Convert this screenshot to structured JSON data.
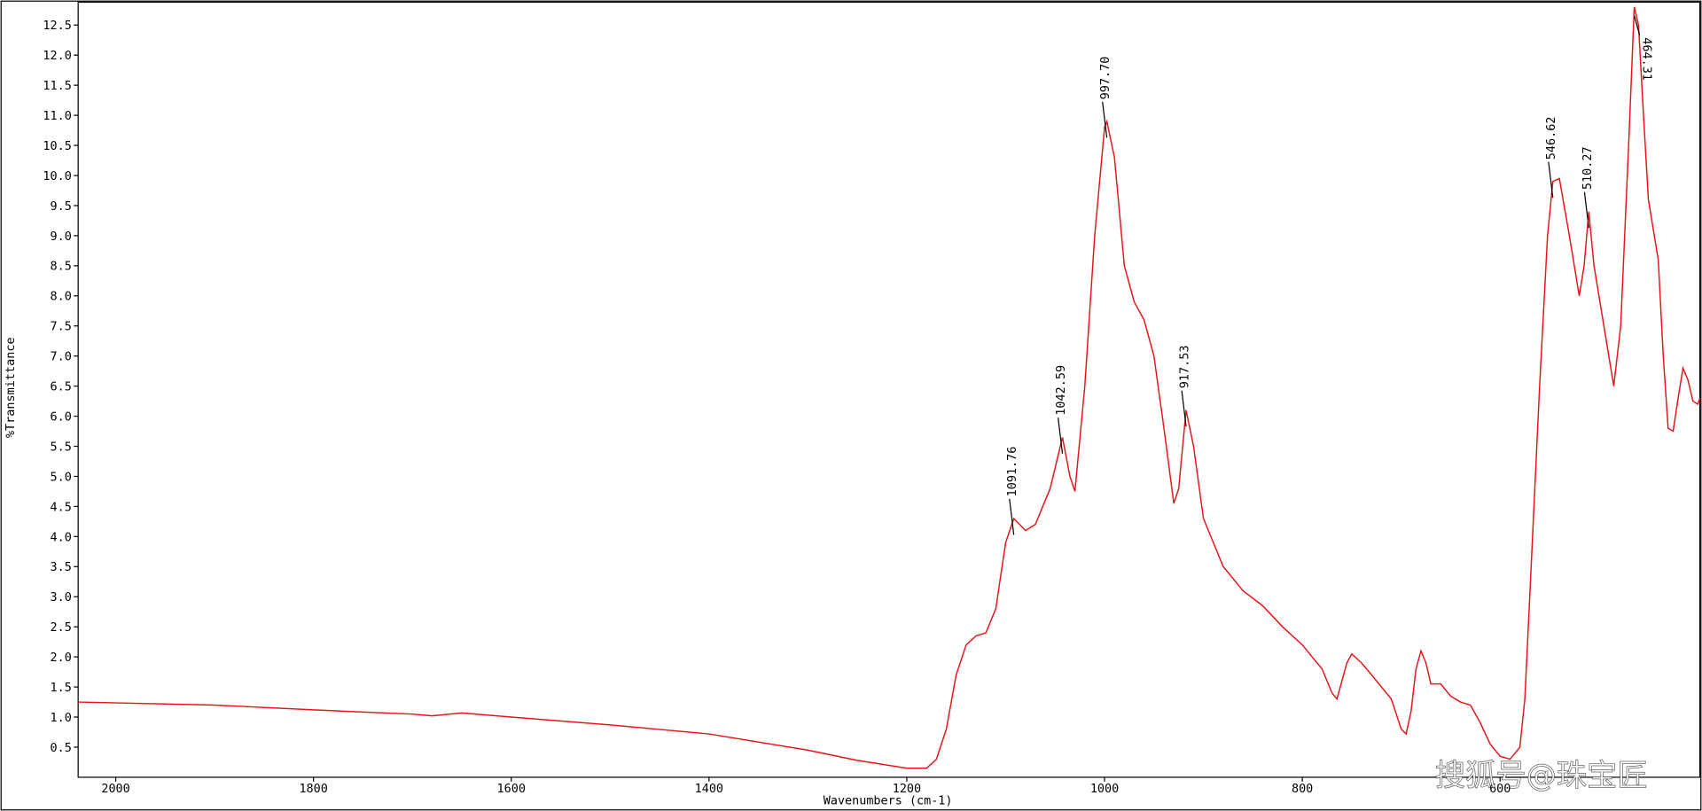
{
  "chart_data": {
    "type": "line",
    "xlabel": "Wavenumbers (cm-1)",
    "ylabel": "%Transmittance",
    "watermark": "搜狐号@珠宝匠",
    "color": "#e8141a",
    "xlim": [
      2038,
      398
    ],
    "ylim": [
      0.0,
      12.88
    ],
    "xticks": [
      2000,
      1800,
      1600,
      1400,
      1200,
      1000,
      800,
      600
    ],
    "yticks": [
      0.5,
      {
        "value": 1,
        "label": "1.0"
      },
      1.5,
      {
        "value": 2,
        "label": "2.0"
      },
      2.5,
      {
        "value": 3,
        "label": "3.0"
      },
      3.5,
      {
        "value": 4,
        "label": "4.0"
      },
      4.5,
      {
        "value": 5,
        "label": "5.0"
      },
      5.5,
      {
        "value": 6,
        "label": "6.0"
      },
      6.5,
      {
        "value": 7,
        "label": "7.0"
      },
      7.5,
      {
        "value": 8,
        "label": "8.0"
      },
      8.5,
      {
        "value": 9,
        "label": "9.0"
      },
      9.5,
      {
        "value": 10,
        "label": "10.0"
      },
      10.5,
      {
        "value": 11,
        "label": "11.0"
      },
      11.5,
      {
        "value": 12,
        "label": "12.0"
      },
      12.5
    ],
    "x": [
      2038,
      1900,
      1800,
      1700,
      1680,
      1650,
      1600,
      1500,
      1400,
      1300,
      1250,
      1200,
      1180,
      1170,
      1160,
      1150,
      1140,
      1130,
      1120,
      1110,
      1100,
      1091.76,
      1080,
      1070,
      1055,
      1042.59,
      1035,
      1030,
      1020,
      1010,
      1000,
      997.7,
      990,
      980,
      970,
      960,
      950,
      940,
      930,
      925,
      917.53,
      910,
      900,
      880,
      860,
      840,
      820,
      800,
      780,
      770,
      765,
      755,
      750,
      740,
      730,
      720,
      710,
      700,
      695,
      690,
      685,
      680,
      675,
      670,
      660,
      650,
      640,
      630,
      620,
      610,
      600,
      590,
      580,
      575,
      570,
      560,
      552,
      546.62,
      540,
      530,
      520,
      515,
      510.27,
      505,
      495,
      485,
      478,
      470,
      464.31,
      460,
      455,
      450,
      440,
      435,
      430,
      425,
      420,
      415,
      410,
      405,
      400,
      398
    ],
    "values": [
      1.25,
      1.2,
      1.12,
      1.05,
      1.02,
      1.07,
      1.0,
      0.87,
      0.72,
      0.45,
      0.28,
      0.15,
      0.15,
      0.3,
      0.8,
      1.7,
      2.2,
      2.35,
      2.4,
      2.8,
      3.9,
      4.3,
      4.1,
      4.2,
      4.8,
      5.65,
      5.0,
      4.75,
      6.5,
      9.0,
      10.8,
      10.9,
      10.3,
      8.5,
      7.9,
      7.6,
      7.0,
      5.8,
      4.55,
      4.8,
      6.1,
      5.5,
      4.3,
      3.5,
      3.1,
      2.85,
      2.5,
      2.2,
      1.8,
      1.4,
      1.3,
      1.9,
      2.05,
      1.9,
      1.7,
      1.5,
      1.3,
      0.8,
      0.72,
      1.1,
      1.8,
      2.1,
      1.9,
      1.55,
      1.55,
      1.35,
      1.25,
      1.2,
      0.9,
      0.55,
      0.35,
      0.3,
      0.5,
      1.3,
      3.0,
      6.5,
      9.0,
      9.9,
      9.95,
      9.0,
      8.0,
      8.5,
      9.4,
      8.5,
      7.5,
      6.5,
      7.5,
      10.5,
      12.8,
      12.5,
      11.0,
      9.6,
      8.6,
      7.0,
      5.8,
      5.75,
      6.3,
      6.8,
      6.6,
      6.25,
      6.2,
      6.3
    ],
    "annotations": [
      {
        "x": 1091.76,
        "label": "1091.76"
      },
      {
        "x": 1042.59,
        "label": "1042.59"
      },
      {
        "x": 997.7,
        "label": "997.70"
      },
      {
        "x": 917.53,
        "label": "917.53"
      },
      {
        "x": 546.62,
        "label": "546.62"
      },
      {
        "x": 510.27,
        "label": "510.27"
      },
      {
        "x": 464.31,
        "label": "464.31"
      }
    ]
  }
}
